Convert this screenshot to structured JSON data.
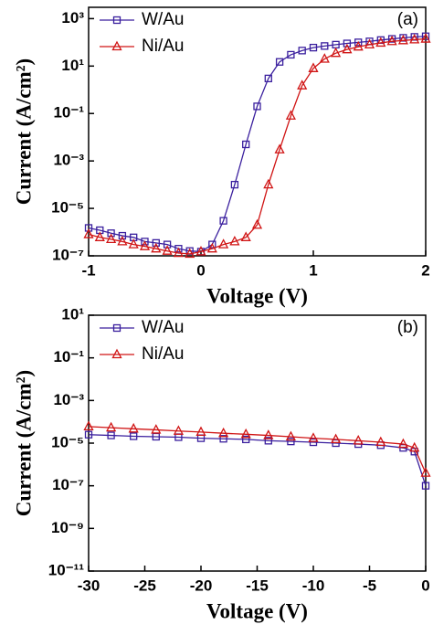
{
  "chart_data": [
    {
      "type": "line",
      "annotation": "(a)",
      "x_label": "Voltage (V)",
      "y_label": "Current (A/cm²)",
      "log_y": true,
      "legend": "upper left",
      "x": [
        -1,
        -0.9,
        -0.8,
        -0.7,
        -0.6,
        -0.5,
        -0.4,
        -0.3,
        -0.2,
        -0.1,
        0,
        0.1,
        0.2,
        0.3,
        0.4,
        0.5,
        0.6,
        0.7,
        0.8,
        0.9,
        1.0,
        1.1,
        1.2,
        1.3,
        1.4,
        1.5,
        1.6,
        1.7,
        1.8,
        1.9,
        2.0
      ],
      "series": [
        {
          "name": "W/Au",
          "color": "#3a1f9e",
          "marker": "square",
          "values": [
            1.5e-06,
            1.2e-06,
            9e-07,
            7e-07,
            6e-07,
            4e-07,
            3.5e-07,
            3e-07,
            2e-07,
            1.6e-07,
            1.5e-07,
            3e-07,
            3e-06,
            0.0001,
            0.005,
            0.2,
            3,
            15,
            30,
            45,
            60,
            70,
            80,
            90,
            100,
            110,
            125,
            140,
            155,
            170,
            180
          ]
        },
        {
          "name": "Ni/Au",
          "color": "#d01414",
          "marker": "triangle",
          "values": [
            8e-07,
            6e-07,
            5e-07,
            4e-07,
            3e-07,
            2.5e-07,
            2e-07,
            1.6e-07,
            1.3e-07,
            1.2e-07,
            1.5e-07,
            2e-07,
            3e-07,
            4e-07,
            6e-07,
            2e-06,
            0.0001,
            0.003,
            0.08,
            1.5,
            8,
            20,
            35,
            50,
            65,
            80,
            95,
            110,
            120,
            130,
            140
          ]
        }
      ],
      "xlim": [
        -1,
        2
      ],
      "xticks": [
        -1,
        0,
        1,
        2
      ],
      "ylim": [
        1e-07,
        3000
      ],
      "yticks": [
        {
          "value": 1e-07,
          "label": "10⁻⁷"
        },
        {
          "value": 1e-05,
          "label": "10⁻⁵"
        },
        {
          "value": 0.001,
          "label": "10⁻³"
        },
        {
          "value": 0.1,
          "label": "10⁻¹"
        },
        {
          "value": 10,
          "label": "10¹"
        },
        {
          "value": 1000,
          "label": "10³"
        }
      ]
    },
    {
      "type": "line",
      "annotation": "(b)",
      "x_label": "Voltage (V)",
      "y_label": "Current (A/cm²)",
      "log_y": true,
      "legend": "upper left",
      "x": [
        -30,
        -28,
        -26,
        -24,
        -22,
        -20,
        -18,
        -16,
        -14,
        -12,
        -10,
        -8,
        -6,
        -4,
        -2,
        -1,
        0
      ],
      "series": [
        {
          "name": "W/Au",
          "color": "#3a1f9e",
          "marker": "square",
          "values": [
            2.5e-05,
            2.3e-05,
            2.1e-05,
            2e-05,
            1.9e-05,
            1.7e-05,
            1.6e-05,
            1.5e-05,
            1.3e-05,
            1.2e-05,
            1.1e-05,
            1e-05,
            9e-06,
            8e-06,
            6e-06,
            4e-06,
            1e-07
          ]
        },
        {
          "name": "Ni/Au",
          "color": "#d01414",
          "marker": "triangle",
          "values": [
            6e-05,
            5.3e-05,
            4.7e-05,
            4.2e-05,
            3.7e-05,
            3.3e-05,
            2.9e-05,
            2.6e-05,
            2.3e-05,
            2e-05,
            1.7e-05,
            1.5e-05,
            1.3e-05,
            1.1e-05,
            9e-06,
            6e-06,
            4e-07
          ]
        }
      ],
      "xlim": [
        -30,
        0
      ],
      "xticks": [
        -30,
        -25,
        -20,
        -15,
        -10,
        -5,
        0
      ],
      "ylim": [
        1e-11,
        10
      ],
      "yticks": [
        {
          "value": 1e-11,
          "label": "10⁻¹¹"
        },
        {
          "value": 1e-09,
          "label": "10⁻⁹"
        },
        {
          "value": 1e-07,
          "label": "10⁻⁷"
        },
        {
          "value": 1e-05,
          "label": "10⁻⁵"
        },
        {
          "value": 0.001,
          "label": "10⁻³"
        },
        {
          "value": 0.1,
          "label": "10⁻¹"
        },
        {
          "value": 10,
          "label": "10¹"
        }
      ]
    }
  ]
}
